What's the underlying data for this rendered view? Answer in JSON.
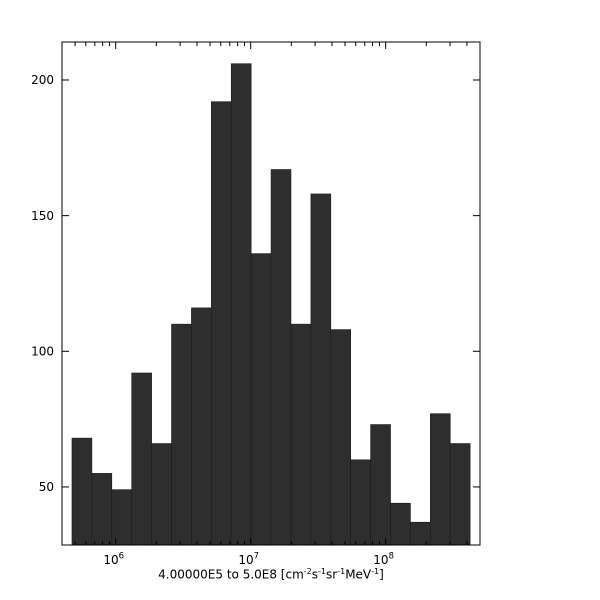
{
  "figure": {
    "background": "#ffffff",
    "frame_color": "#000000",
    "text_color": "#000000"
  },
  "chart_data": {
    "type": "histogram",
    "title": "",
    "xlabel_plain": "4.00000E5 to 5.0E8 [cm-2 s-1 sr-1 MeV-1]",
    "xlabel_parts": [
      {
        "text": "4.00000E5 to 5.0E8 [cm"
      },
      {
        "sup": "-2"
      },
      {
        "text": "s"
      },
      {
        "sup": "-1"
      },
      {
        "text": "sr"
      },
      {
        "sup": "-1"
      },
      {
        "text": "MeV"
      },
      {
        "sup": "-1"
      },
      {
        "text": "]"
      }
    ],
    "ylabel": "",
    "x_scale": "log10",
    "x_range": [
      400000,
      500000000
    ],
    "y_range": [
      28.6,
      214.0
    ],
    "y_ticks": [
      50,
      100,
      150,
      200
    ],
    "x_major_ticks": [
      1000000,
      10000000,
      100000000
    ],
    "x_major_tick_labels": [
      {
        "base": "10",
        "exp": "6"
      },
      {
        "base": "10",
        "exp": "7"
      },
      {
        "base": "10",
        "exp": "8"
      }
    ],
    "x_minor_ticks_per_decade": [
      2,
      3,
      4,
      5,
      6,
      7,
      8,
      9
    ],
    "grid": false,
    "legend": false,
    "bar_color": "#2e2e2e",
    "bar_edge_color": "#1c1c1c",
    "bins": {
      "start_log10": 5.676,
      "step_log10": 0.1475,
      "counts": [
        68,
        55,
        49,
        92,
        66,
        110,
        116,
        192,
        206,
        136,
        167,
        110,
        158,
        108,
        60,
        73,
        44,
        37,
        77,
        66
      ]
    }
  }
}
